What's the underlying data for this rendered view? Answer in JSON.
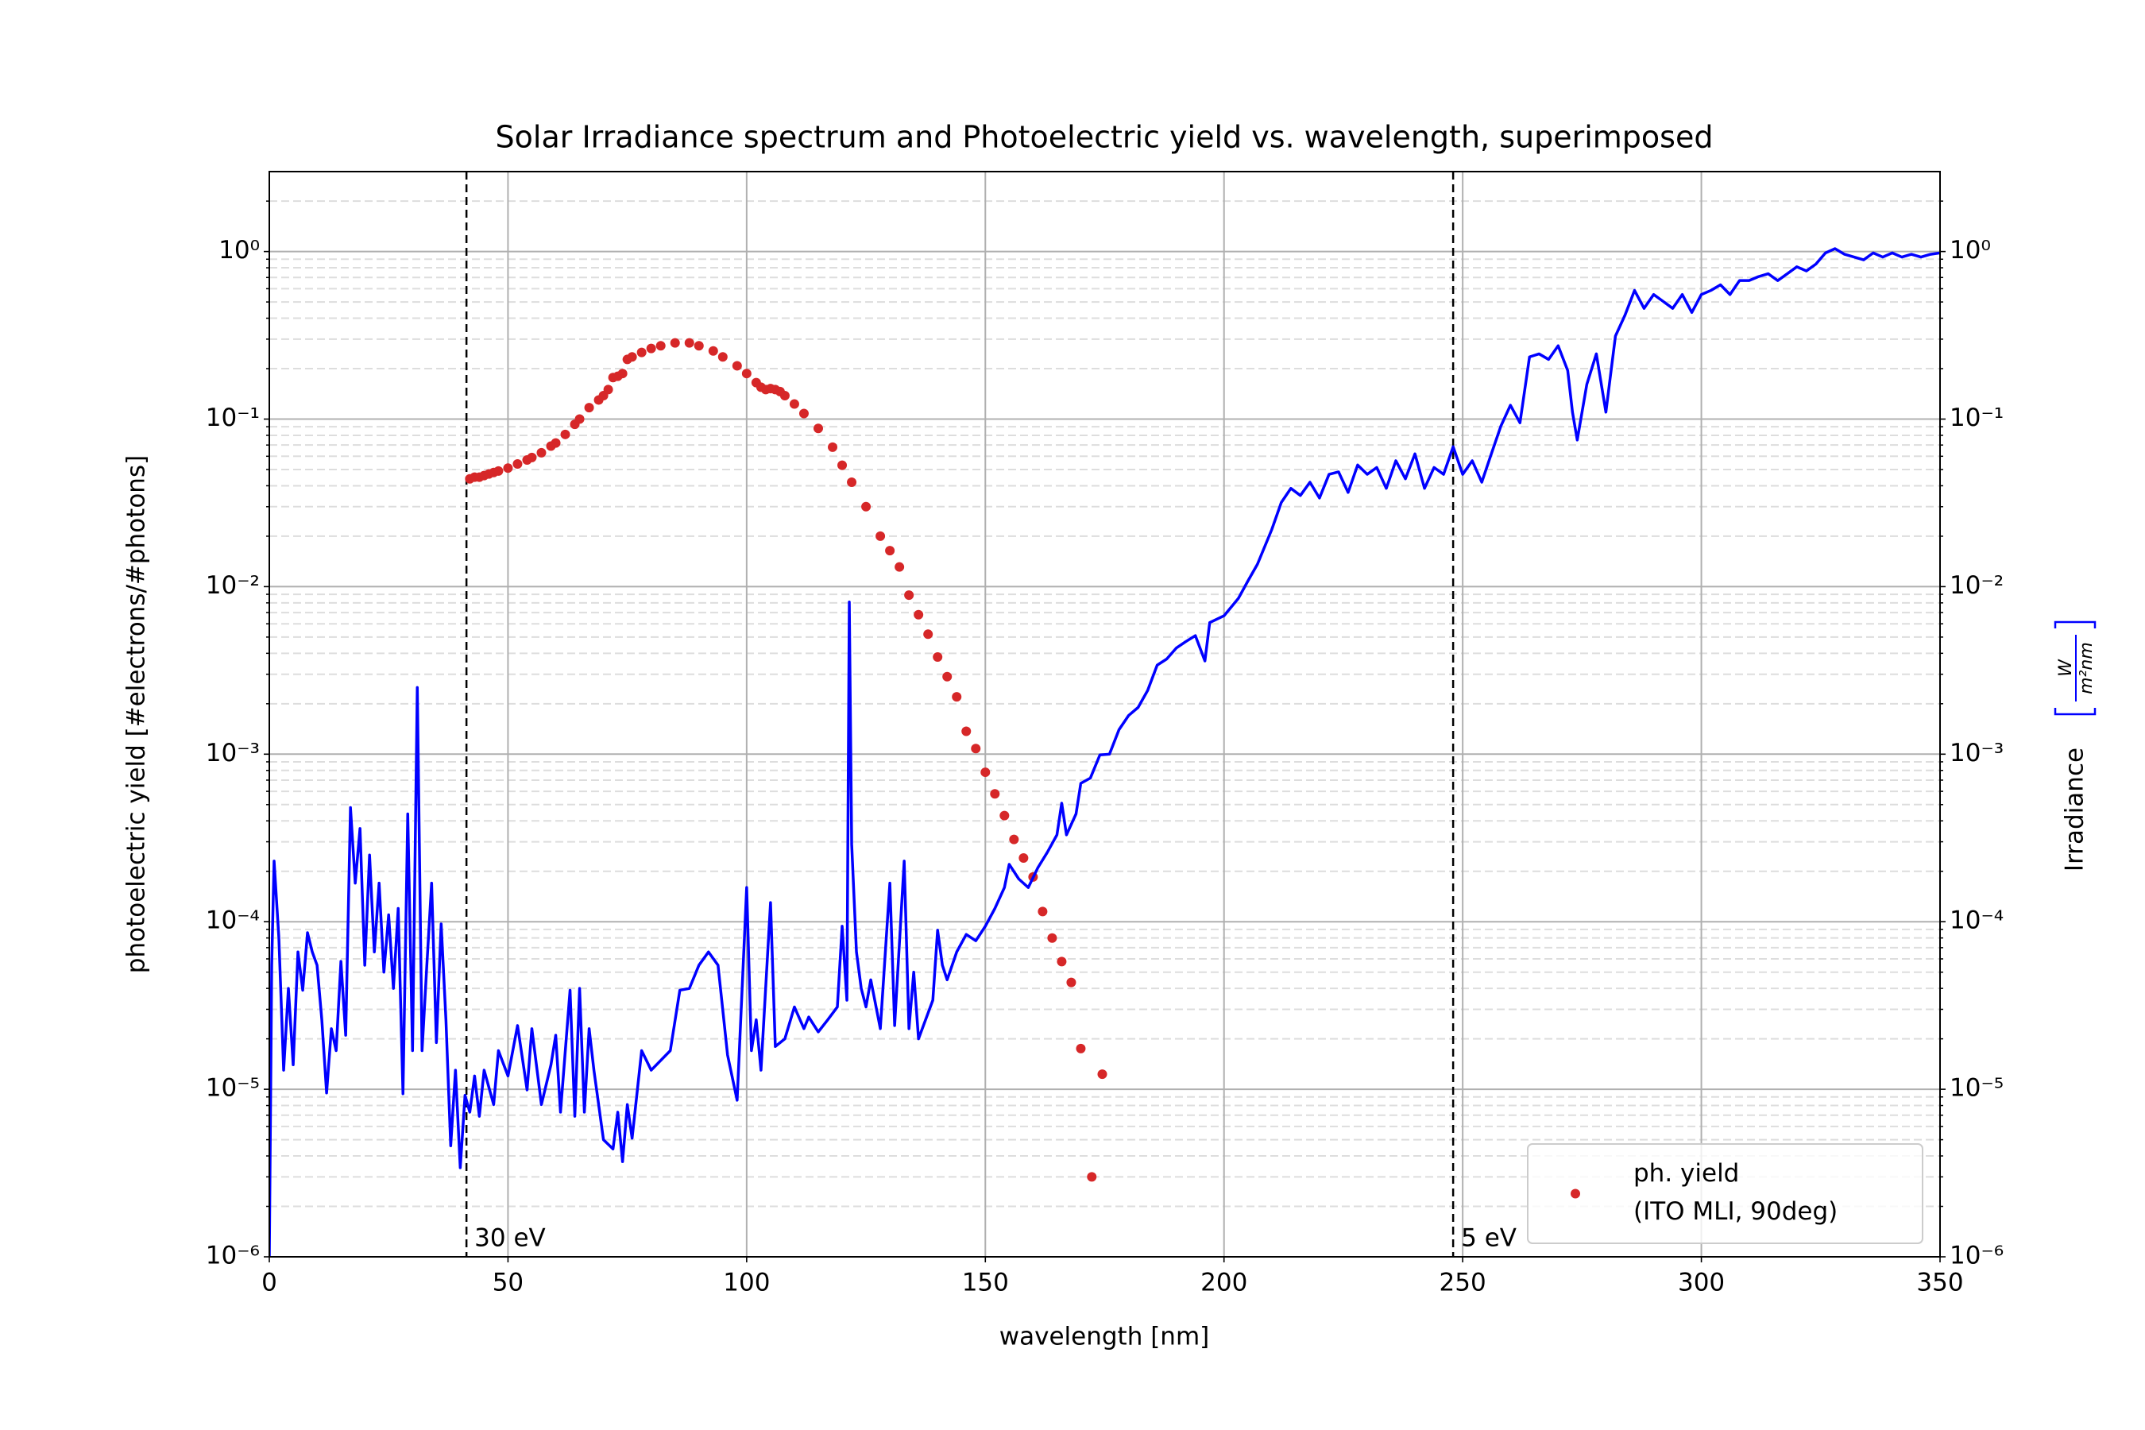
{
  "chart_data": {
    "type": "line",
    "title": "Solar Irradiance spectrum and Photoelectric yield vs. wavelength, superimposed",
    "xlabel": "wavelength [nm]",
    "ylabel": "photoelectric yield [#electrons/#photons]",
    "ylabel_color": "#d62728",
    "y2label": "Irradiance",
    "y2label_units": [
      "W",
      "m²nm"
    ],
    "y2label_color": "#0000ff",
    "xlim": [
      0,
      350
    ],
    "xticks": [
      0,
      50,
      100,
      150,
      200,
      250,
      300,
      350
    ],
    "ylim": [
      1e-06,
      3
    ],
    "y2lim": [
      1e-06,
      3
    ],
    "log_y": true,
    "yticks": [
      {
        "value": 1e-06,
        "label": "10⁻⁶"
      },
      {
        "value": 1e-05,
        "label": "10⁻⁵"
      },
      {
        "value": 0.0001,
        "label": "10⁻⁴"
      },
      {
        "value": 0.001,
        "label": "10⁻³"
      },
      {
        "value": 0.01,
        "label": "10⁻²"
      },
      {
        "value": 0.1,
        "label": "10⁻¹"
      },
      {
        "value": 1,
        "label": "10⁰"
      }
    ],
    "y2ticks": [
      {
        "value": 1e-06,
        "label": "10⁻⁶"
      },
      {
        "value": 1e-05,
        "label": "10⁻⁵"
      },
      {
        "value": 0.0001,
        "label": "10⁻⁴"
      },
      {
        "value": 0.001,
        "label": "10⁻³"
      },
      {
        "value": 0.01,
        "label": "10⁻²"
      },
      {
        "value": 0.1,
        "label": "10⁻¹"
      },
      {
        "value": 1,
        "label": "10⁰"
      }
    ],
    "yminorticks": [
      2e-06,
      3e-06,
      4e-06,
      5e-06,
      6e-06,
      7e-06,
      8e-06,
      9e-06,
      2e-05,
      3e-05,
      4e-05,
      5e-05,
      6e-05,
      7e-05,
      8e-05,
      9e-05,
      0.0002,
      0.0003,
      0.0004,
      0.0005,
      0.0006,
      0.0007,
      0.0008,
      0.0009,
      0.002,
      0.003,
      0.004,
      0.005,
      0.006,
      0.007,
      0.008,
      0.009,
      0.02,
      0.03,
      0.04,
      0.05,
      0.06,
      0.07,
      0.08,
      0.09,
      0.2,
      0.3,
      0.4,
      0.5,
      0.6,
      0.7,
      0.8,
      0.9,
      2
    ],
    "grid": true,
    "minor_grid": true,
    "legend_corner": "lower right",
    "vlines": [
      {
        "x": 41.3,
        "label": "30 eV"
      },
      {
        "x": 248,
        "label": "5 eV"
      }
    ],
    "series": [
      {
        "name": [
          "ph. yield",
          "(ITO MLI, 90deg)"
        ],
        "color": "#d62728",
        "style": "dot",
        "axis": "y",
        "x": [
          42,
          43,
          44,
          45,
          46,
          47,
          48,
          50,
          52,
          54,
          55,
          57,
          59,
          60,
          62,
          64,
          65,
          67,
          69,
          70,
          71,
          72,
          73,
          74,
          75,
          76,
          78,
          80,
          82,
          85,
          88,
          90,
          93,
          95,
          98,
          100,
          102,
          103,
          104,
          105,
          106,
          107,
          108,
          110,
          112,
          115,
          118,
          120,
          122,
          125,
          128,
          130,
          132,
          134,
          136,
          138,
          140,
          142,
          144,
          146,
          148,
          150,
          152,
          154,
          156,
          158,
          160,
          162,
          164,
          166,
          168,
          170,
          172.3,
          174.5
        ],
        "values": [
          0.044,
          0.045,
          0.045,
          0.046,
          0.047,
          0.048,
          0.049,
          0.051,
          0.054,
          0.057,
          0.059,
          0.063,
          0.069,
          0.072,
          0.081,
          0.093,
          0.1,
          0.117,
          0.13,
          0.138,
          0.15,
          0.177,
          0.18,
          0.187,
          0.227,
          0.235,
          0.25,
          0.264,
          0.274,
          0.285,
          0.285,
          0.274,
          0.255,
          0.235,
          0.208,
          0.187,
          0.165,
          0.155,
          0.15,
          0.152,
          0.15,
          0.146,
          0.138,
          0.123,
          0.108,
          0.088,
          0.068,
          0.053,
          0.042,
          0.03,
          0.02,
          0.0164,
          0.0131,
          0.0089,
          0.0068,
          0.0052,
          0.0038,
          0.0029,
          0.0022,
          0.00137,
          0.00108,
          0.00078,
          0.00058,
          0.00043,
          0.00031,
          0.00024,
          0.000185,
          0.000115,
          7.99e-05,
          5.78e-05,
          4.34e-05,
          1.75e-05,
          3e-06,
          1.23e-05
        ]
      },
      {
        "color": "#0000ff",
        "style": "line",
        "axis": "y2",
        "x": [
          0,
          0.5,
          1,
          2,
          3,
          4,
          5,
          6,
          7,
          8,
          9,
          10,
          11,
          12,
          13,
          14,
          15,
          16,
          17,
          18,
          19,
          20,
          21,
          22,
          23,
          24,
          25,
          26,
          27,
          28,
          29,
          30,
          31,
          32,
          33,
          34,
          35,
          36,
          37,
          38,
          39,
          40,
          41,
          42,
          43,
          44,
          45,
          47,
          48,
          50,
          52,
          54,
          55,
          57,
          59,
          60,
          61,
          63,
          64,
          65,
          66,
          67,
          68,
          70,
          72,
          73,
          74,
          75,
          76,
          78,
          80,
          84,
          86,
          88,
          90,
          92,
          94,
          96,
          98,
          100,
          101,
          102,
          103,
          105,
          106,
          108,
          110,
          112,
          113,
          115,
          117,
          119,
          120,
          121,
          121.5,
          122,
          123,
          124,
          125,
          126,
          128,
          130,
          131,
          133,
          134,
          135,
          136,
          139,
          140,
          141,
          142,
          144,
          146,
          148,
          150,
          152,
          154,
          155,
          157,
          159,
          161,
          163,
          165,
          166,
          167,
          169,
          170,
          172,
          174,
          176,
          178,
          180,
          182,
          184,
          186,
          188,
          190,
          192,
          194,
          196,
          197,
          200,
          203,
          205,
          207,
          210,
          212,
          214,
          216,
          218,
          220,
          222,
          224,
          226,
          228,
          230,
          232,
          234,
          236,
          238,
          240,
          242,
          244,
          246,
          248,
          250,
          252,
          254,
          256,
          258,
          260,
          262,
          264,
          266,
          268,
          270,
          272,
          273,
          274,
          276,
          278,
          280,
          282,
          284,
          286,
          288,
          290,
          292,
          294,
          296,
          298,
          300,
          302,
          304,
          306,
          308,
          310,
          312,
          314,
          316,
          318,
          320,
          322,
          324,
          326,
          328,
          330,
          332,
          334,
          336,
          338,
          340,
          342,
          344,
          346,
          348,
          350
        ],
        "values": [
          1e-06,
          5.5e-05,
          0.00023,
          8e-05,
          1.3e-05,
          4e-05,
          1.4e-05,
          6.6e-05,
          3.9e-05,
          8.6e-05,
          6.6e-05,
          5.5e-05,
          2.6e-05,
          9.5e-06,
          2.3e-05,
          1.7e-05,
          5.8e-05,
          2.1e-05,
          0.00048,
          0.00017,
          0.00036,
          5.5e-05,
          0.00025,
          6.6e-05,
          0.00017,
          5e-05,
          0.00011,
          4e-05,
          0.00012,
          9.4e-06,
          0.00044,
          1.7e-05,
          0.0025,
          1.7e-05,
          5.5e-05,
          0.00017,
          1.9e-05,
          9.7e-05,
          2.6e-05,
          4.6e-06,
          1.3e-05,
          3.4e-06,
          9.2e-06,
          7.3e-06,
          1.2e-05,
          6.9e-06,
          1.3e-05,
          8.1e-06,
          1.7e-05,
          1.2e-05,
          2.4e-05,
          9.9e-06,
          2.3e-05,
          8.1e-06,
          1.4e-05,
          2.1e-05,
          7.3e-06,
          3.9e-05,
          6.9e-06,
          4e-05,
          7.3e-06,
          2.3e-05,
          1.3e-05,
          5e-06,
          4.4e-06,
          7.3e-06,
          3.7e-06,
          8.1e-06,
          5.1e-06,
          1.7e-05,
          1.3e-05,
          1.7e-05,
          3.9e-05,
          4e-05,
          5.5e-05,
          6.6e-05,
          5.5e-05,
          1.6e-05,
          8.6e-06,
          0.00016,
          1.7e-05,
          2.6e-05,
          1.3e-05,
          0.00013,
          1.8e-05,
          2e-05,
          3.1e-05,
          2.3e-05,
          2.7e-05,
          2.2e-05,
          2.6e-05,
          3.1e-05,
          9.4e-05,
          3.4e-05,
          0.0081,
          0.00029,
          6.6e-05,
          4e-05,
          3.1e-05,
          4.5e-05,
          2.3e-05,
          0.00017,
          2.4e-05,
          0.00023,
          2.3e-05,
          5e-05,
          2e-05,
          3.4e-05,
          8.9e-05,
          5.5e-05,
          4.5e-05,
          6.6e-05,
          8.4e-05,
          7.7e-05,
          9.4e-05,
          0.00012,
          0.00016,
          0.00022,
          0.00018,
          0.00016,
          0.00021,
          0.00026,
          0.00033,
          0.00051,
          0.00033,
          0.00044,
          0.00067,
          0.00072,
          0.00099,
          0.001,
          0.0014,
          0.0017,
          0.0019,
          0.0024,
          0.0034,
          0.0037,
          0.0043,
          0.0047,
          0.0051,
          0.0036,
          0.0061,
          0.0067,
          0.0085,
          0.0108,
          0.0136,
          0.0219,
          0.0318,
          0.0386,
          0.035,
          0.042,
          0.0338,
          0.0468,
          0.0484,
          0.0365,
          0.0532,
          0.0468,
          0.0514,
          0.0386,
          0.0564,
          0.044,
          0.062,
          0.0386,
          0.0514,
          0.0468,
          0.0684,
          0.0468,
          0.0564,
          0.042,
          0.062,
          0.0908,
          0.121,
          0.095,
          0.235,
          0.245,
          0.227,
          0.274,
          0.195,
          0.11,
          0.075,
          0.161,
          0.245,
          0.11,
          0.313,
          0.417,
          0.586,
          0.458,
          0.554,
          0.504,
          0.458,
          0.554,
          0.433,
          0.554,
          0.586,
          0.633,
          0.554,
          0.671,
          0.671,
          0.709,
          0.737,
          0.671,
          0.737,
          0.811,
          0.766,
          0.842,
          0.981,
          1.04,
          0.963,
          0.927,
          0.892,
          0.981,
          0.927,
          0.981,
          0.927,
          0.963,
          0.927,
          0.963,
          0.981
        ]
      }
    ]
  }
}
